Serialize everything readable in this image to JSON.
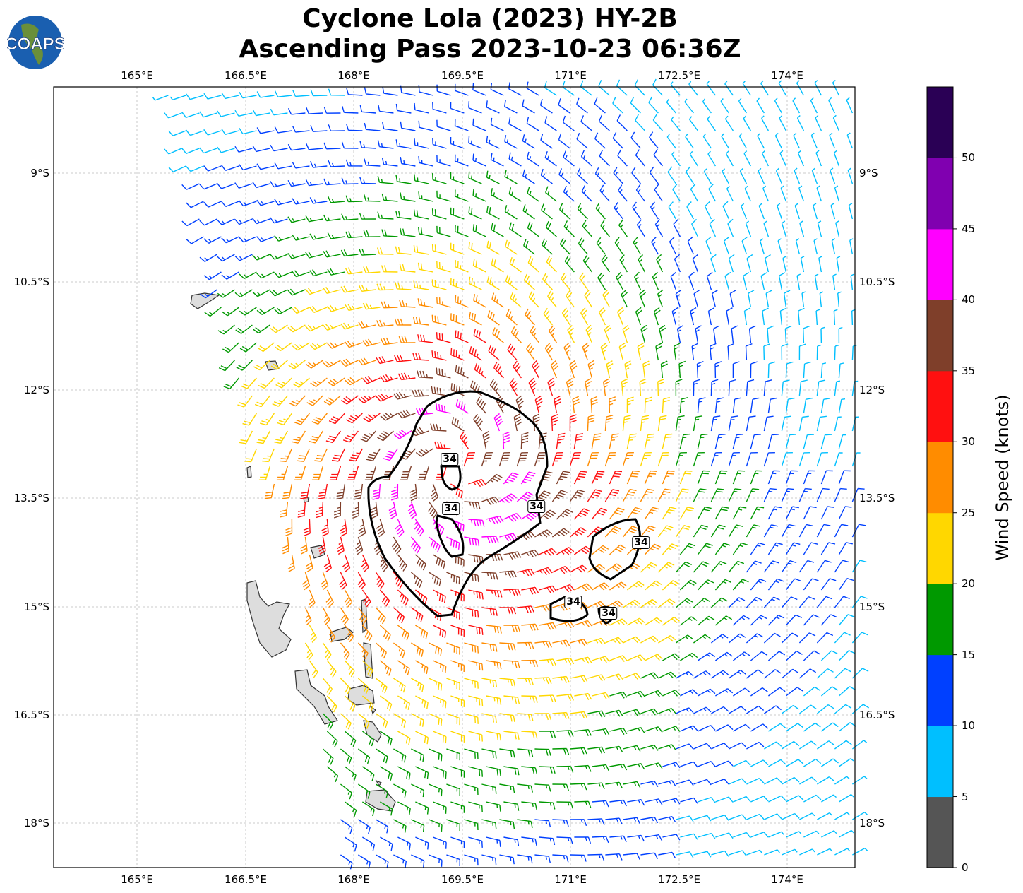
{
  "title": {
    "line1": "Cyclone Lola (2023) HY-2B",
    "line2": "Ascending Pass 2023-10-23 06:36Z"
  },
  "logo": {
    "text": "COAPS"
  },
  "axes": {
    "lon_ticks": [
      "165°E",
      "166.5°E",
      "168°E",
      "169.5°E",
      "171°E",
      "172.5°E",
      "174°E"
    ],
    "lat_ticks": [
      "9°S",
      "10.5°S",
      "12°S",
      "13.5°S",
      "15°S",
      "16.5°S",
      "18°S"
    ]
  },
  "colorbar": {
    "label": "Wind Speed (knots)",
    "ticks": [
      "0",
      "5",
      "10",
      "15",
      "20",
      "25",
      "30",
      "35",
      "40",
      "45",
      "50"
    ],
    "bins": [
      {
        "min": 0,
        "max": 5,
        "color": "#555555"
      },
      {
        "min": 5,
        "max": 10,
        "color": "#00bfff"
      },
      {
        "min": 10,
        "max": 15,
        "color": "#0040ff"
      },
      {
        "min": 15,
        "max": 20,
        "color": "#009900"
      },
      {
        "min": 20,
        "max": 25,
        "color": "#ffd700"
      },
      {
        "min": 25,
        "max": 30,
        "color": "#ff8c00"
      },
      {
        "min": 30,
        "max": 35,
        "color": "#ff1010"
      },
      {
        "min": 35,
        "max": 40,
        "color": "#7f3f2a"
      },
      {
        "min": 40,
        "max": 45,
        "color": "#ff00ff"
      },
      {
        "min": 45,
        "max": 50,
        "color": "#8000b0"
      },
      {
        "min": 50,
        "max": 55,
        "color": "#2a0055"
      }
    ]
  },
  "contour_labels": [
    "34",
    "34",
    "34",
    "34",
    "34",
    "34"
  ]
}
